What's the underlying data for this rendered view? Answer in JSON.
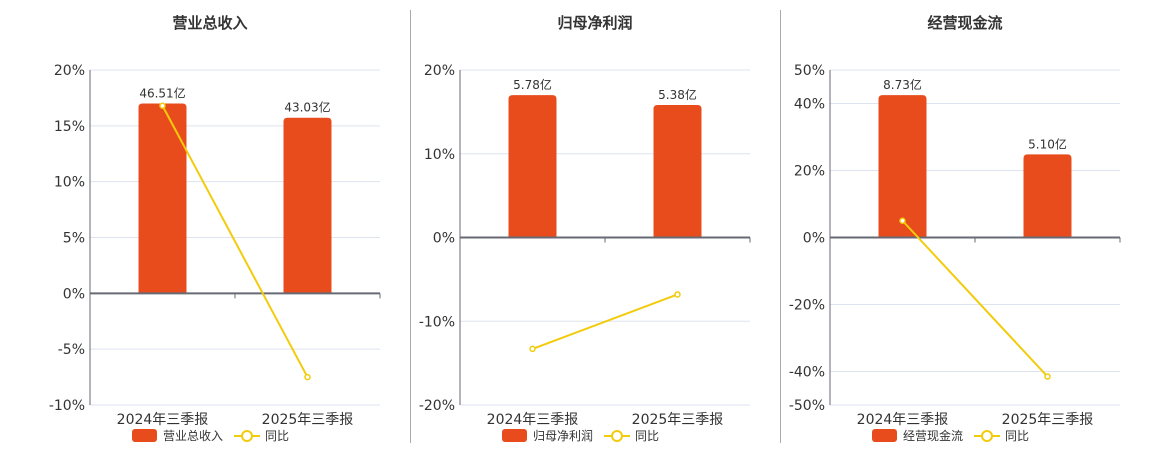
{
  "chart_data": [
    {
      "type": "bar+line",
      "title": "营业总收入",
      "categories": [
        "2024年三季报",
        "2025年三季报"
      ],
      "bar_series": {
        "name": "营业总收入",
        "values": [
          46.51,
          43.03
        ],
        "labels": [
          "46.51亿",
          "43.03亿"
        ],
        "unit": "亿"
      },
      "line_series": {
        "name": "同比",
        "values": [
          16.8,
          -7.5
        ],
        "unit": "%"
      },
      "yticks": [
        20,
        15,
        10,
        5,
        0,
        -5,
        -10
      ],
      "ylim": [
        -10,
        20
      ],
      "grid": true,
      "legend": "bottom"
    },
    {
      "type": "bar+line",
      "title": "归母净利润",
      "categories": [
        "2024年三季报",
        "2025年三季报"
      ],
      "bar_series": {
        "name": "归母净利润",
        "values": [
          5.78,
          5.38
        ],
        "labels": [
          "5.78亿",
          "5.38亿"
        ],
        "unit": "亿"
      },
      "line_series": {
        "name": "同比",
        "values": [
          -13.3,
          -6.8
        ],
        "unit": "%"
      },
      "yticks": [
        20,
        10,
        0,
        -10,
        -20
      ],
      "ylim": [
        -20,
        20
      ],
      "grid": true,
      "legend": "bottom"
    },
    {
      "type": "bar+line",
      "title": "经营现金流",
      "categories": [
        "2024年三季报",
        "2025年三季报"
      ],
      "bar_series": {
        "name": "经营现金流",
        "values": [
          8.73,
          5.1
        ],
        "labels": [
          "8.73亿",
          "5.10亿"
        ],
        "unit": "亿"
      },
      "line_series": {
        "name": "同比",
        "values": [
          5.0,
          -41.5
        ],
        "unit": "%"
      },
      "yticks": [
        50,
        40,
        20,
        0,
        -20,
        -40,
        -50
      ],
      "ylim": [
        -50,
        50
      ],
      "grid": true,
      "legend": "bottom"
    }
  ],
  "colors": {
    "bar": "#e84c1c",
    "line": "#f2cc0c",
    "grid": "#dde3ef",
    "axis": "#666a73",
    "text": "#333333"
  }
}
